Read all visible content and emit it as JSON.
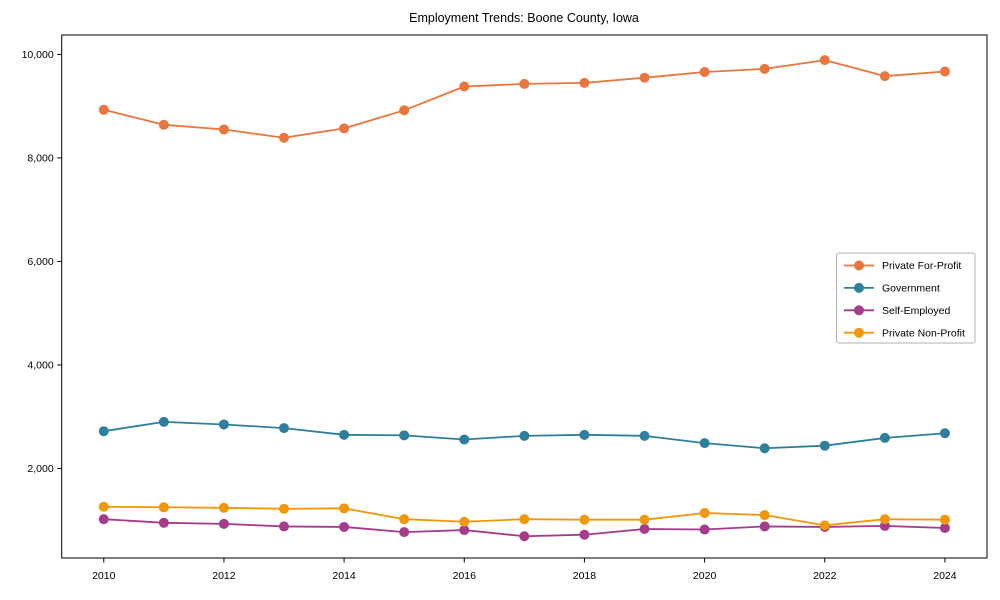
{
  "chart_data": {
    "type": "line",
    "title": "Employment Trends: Boone County, Iowa",
    "x": [
      2010,
      2011,
      2012,
      2013,
      2014,
      2015,
      2016,
      2017,
      2018,
      2019,
      2020,
      2021,
      2022,
      2023,
      2024
    ],
    "series": [
      {
        "name": "Private For-Profit",
        "color": "#E8763E",
        "values": [
          8930,
          8640,
          8550,
          8390,
          8570,
          8920,
          9380,
          9430,
          9450,
          9550,
          9660,
          9720,
          9890,
          9580,
          9670
        ]
      },
      {
        "name": "Government",
        "color": "#2E7E9E",
        "values": [
          2720,
          2900,
          2850,
          2780,
          2650,
          2640,
          2560,
          2630,
          2650,
          2630,
          2490,
          2390,
          2440,
          2590,
          2680
        ]
      },
      {
        "name": "Self-Employed",
        "color": "#A43B8B",
        "values": [
          1020,
          950,
          930,
          880,
          870,
          770,
          810,
          690,
          720,
          830,
          820,
          880,
          870,
          890,
          850
        ]
      },
      {
        "name": "Private Non-Profit",
        "color": "#F0980A",
        "values": [
          1260,
          1250,
          1240,
          1220,
          1230,
          1020,
          970,
          1020,
          1010,
          1010,
          1140,
          1100,
          900,
          1020,
          1010
        ]
      }
    ],
    "xticks": {
      "values": [
        2010,
        2012,
        2014,
        2016,
        2018,
        2020,
        2022,
        2024
      ],
      "labels": [
        "2010",
        "2012",
        "2014",
        "2016",
        "2018",
        "2020",
        "2022",
        "2024"
      ]
    },
    "yticks": {
      "values": [
        2000,
        4000,
        6000,
        8000,
        10000
      ],
      "labels": [
        "2,000",
        "4,000",
        "6,000",
        "8,000",
        "10,000"
      ]
    },
    "xlim": [
      2009.3,
      2024.7
    ],
    "ylim": [
      270,
      10375
    ],
    "grid": false,
    "legend": {
      "position": "center-right"
    },
    "axis_color": "#000000",
    "legend_border_color": "#b0b0b0"
  }
}
